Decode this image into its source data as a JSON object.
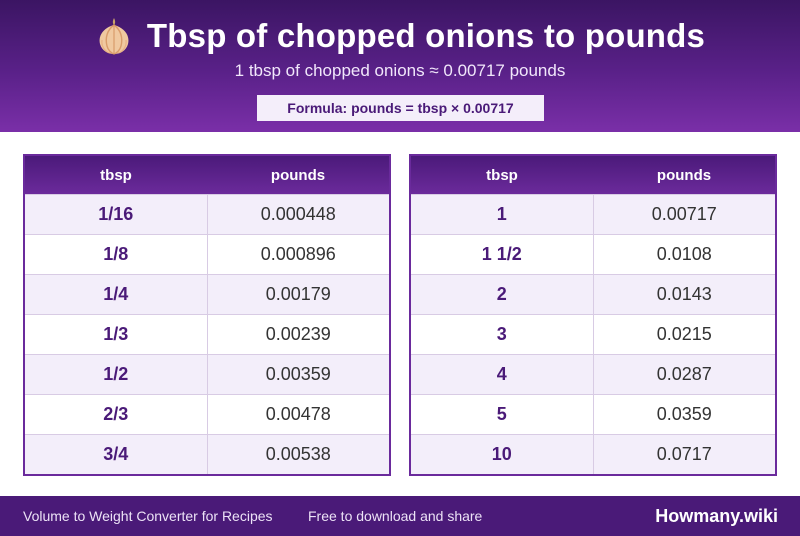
{
  "header": {
    "title": "Tbsp of chopped onions to pounds",
    "subtitle": "1 tbsp of chopped onions ≈ 0.00717 pounds",
    "formula": "Formula: pounds = tbsp × 0.00717",
    "icon": "onion-icon"
  },
  "tables": {
    "left": {
      "headers": [
        "tbsp",
        "pounds"
      ],
      "rows": [
        [
          "1/16",
          "0.000448"
        ],
        [
          "1/8",
          "0.000896"
        ],
        [
          "1/4",
          "0.00179"
        ],
        [
          "1/3",
          "0.00239"
        ],
        [
          "1/2",
          "0.00359"
        ],
        [
          "2/3",
          "0.00478"
        ],
        [
          "3/4",
          "0.00538"
        ]
      ]
    },
    "right": {
      "headers": [
        "tbsp",
        "pounds"
      ],
      "rows": [
        [
          "1",
          "0.00717"
        ],
        [
          "1 1/2",
          "0.0108"
        ],
        [
          "2",
          "0.0143"
        ],
        [
          "3",
          "0.0215"
        ],
        [
          "4",
          "0.0287"
        ],
        [
          "5",
          "0.0359"
        ],
        [
          "10",
          "0.0717"
        ]
      ]
    }
  },
  "footer": {
    "left": "Volume to Weight Converter for Recipes",
    "middle": "Free to download and share",
    "brand": "Howmany.wiki"
  },
  "colors": {
    "header_dark": "#3b1563",
    "header_light": "#7a2fa8",
    "accent": "#4a1a78",
    "row_alt": "#f3eefa"
  }
}
